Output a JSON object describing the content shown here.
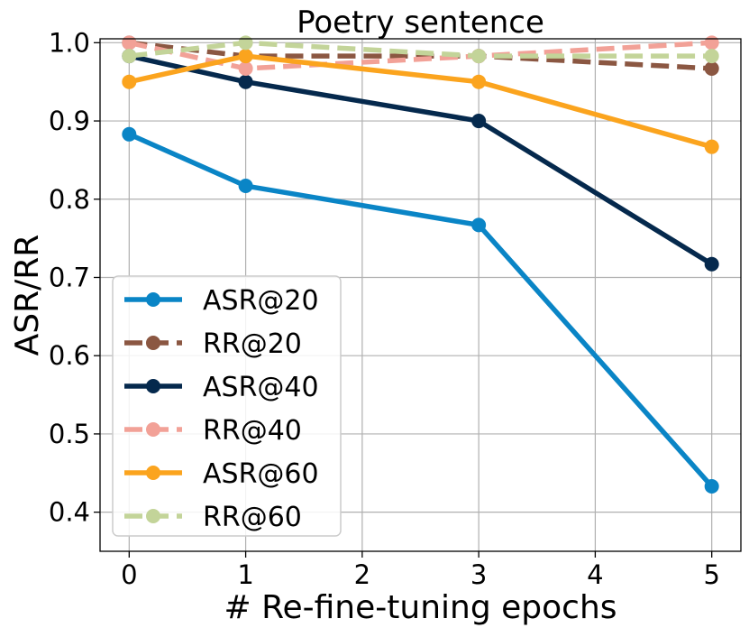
{
  "chart_data": {
    "type": "line",
    "title": "Poetry sentence",
    "xlabel": "# Re-fine-tuning epochs",
    "ylabel": "ASR/RR",
    "xlim": [
      -0.25,
      5.25
    ],
    "ylim": [
      0.35,
      1.005
    ],
    "xticks": [
      "0",
      "1",
      "2",
      "3",
      "4",
      "5"
    ],
    "yticks": [
      "0.4",
      "0.5",
      "0.6",
      "0.7",
      "0.8",
      "0.9",
      "1.0"
    ],
    "grid": true,
    "legend_position": "lower-left",
    "x": [
      0,
      1,
      3,
      5
    ],
    "series": [
      {
        "name": "ASR@20",
        "values": [
          0.883,
          0.817,
          0.767,
          0.433
        ],
        "color": "#0a85c6",
        "dashed": false
      },
      {
        "name": "RR@20",
        "values": [
          1.0,
          0.983,
          0.983,
          0.967
        ],
        "color": "#8b5742",
        "dashed": true
      },
      {
        "name": "ASR@40",
        "values": [
          0.983,
          0.95,
          0.9,
          0.717
        ],
        "color": "#05294d",
        "dashed": false
      },
      {
        "name": "RR@40",
        "values": [
          1.0,
          0.967,
          0.983,
          1.0
        ],
        "color": "#f2a197",
        "dashed": true
      },
      {
        "name": "ASR@60",
        "values": [
          0.95,
          0.983,
          0.95,
          0.867
        ],
        "color": "#fba41e",
        "dashed": false
      },
      {
        "name": "RR@60",
        "values": [
          0.983,
          1.0,
          0.983,
          0.983
        ],
        "color": "#c3d499",
        "dashed": true
      }
    ]
  }
}
